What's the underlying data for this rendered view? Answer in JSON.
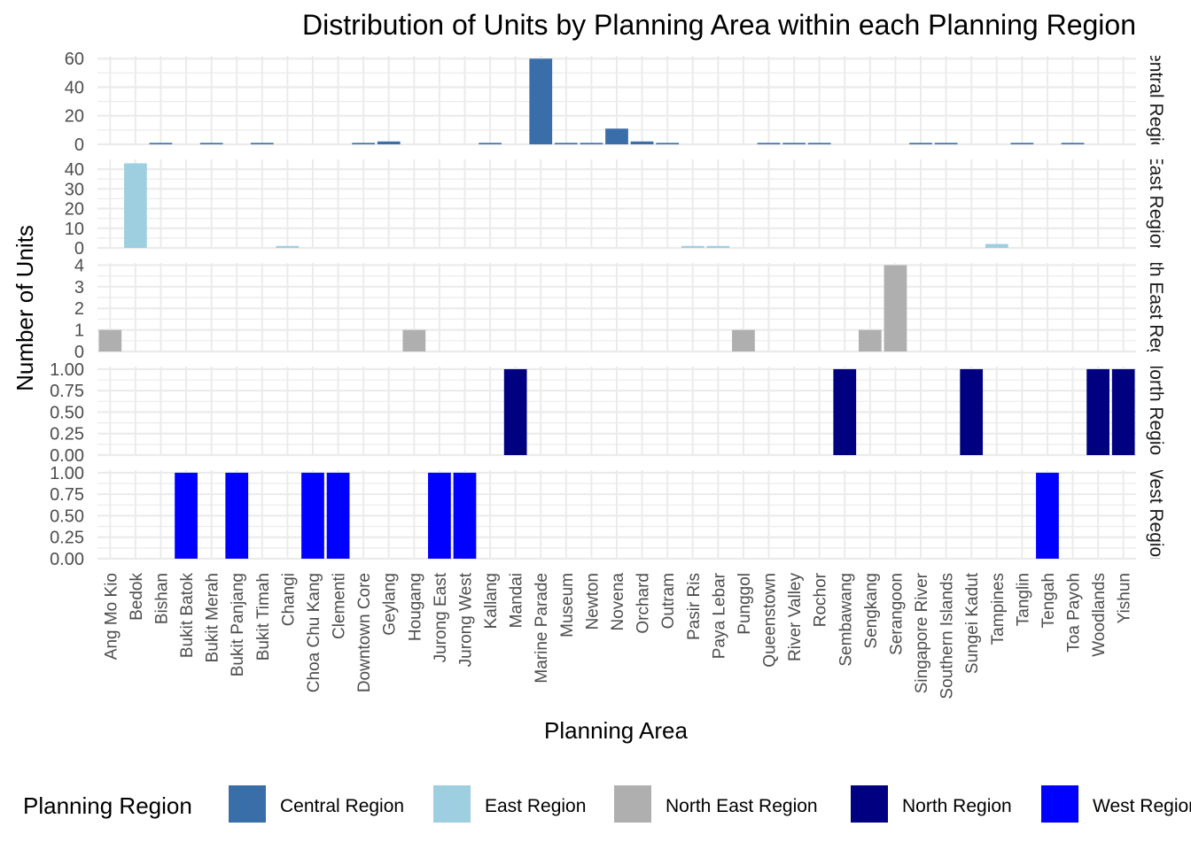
{
  "chart_data": {
    "type": "bar",
    "title": "Distribution of Units by Planning Area within each Planning Region",
    "xlabel": "Planning Area",
    "ylabel": "Number of Units",
    "grid": true,
    "legend_position": "bottom",
    "legend_title": "Planning Region",
    "categories": [
      "Ang Mo Kio",
      "Bedok",
      "Bishan",
      "Bukit Batok",
      "Bukit Merah",
      "Bukit Panjang",
      "Bukit Timah",
      "Changi",
      "Choa Chu Kang",
      "Clementi",
      "Downtown Core",
      "Geylang",
      "Hougang",
      "Jurong East",
      "Jurong West",
      "Kallang",
      "Mandai",
      "Marine Parade",
      "Museum",
      "Newton",
      "Novena",
      "Orchard",
      "Outram",
      "Pasir Ris",
      "Paya Lebar",
      "Punggol",
      "Queenstown",
      "River Valley",
      "Rochor",
      "Sembawang",
      "Sengkang",
      "Serangoon",
      "Singapore River",
      "Southern Islands",
      "Sungei Kadut",
      "Tampines",
      "Tanglin",
      "Tengah",
      "Toa Payoh",
      "Woodlands",
      "Yishun"
    ],
    "series": [
      {
        "name": "Central Region",
        "strip_label": "Central Region",
        "color": "#3A6EA8",
        "ylim": [
          0,
          62
        ],
        "yticks": [
          0,
          20,
          40,
          60
        ],
        "tick_labels": [
          "0",
          "20",
          "40",
          "60"
        ],
        "values": {
          "Bishan": 1,
          "Bukit Merah": 1,
          "Bukit Timah": 1,
          "Downtown Core": 1,
          "Geylang": 2,
          "Kallang": 1,
          "Marine Parade": 60,
          "Museum": 1,
          "Newton": 1,
          "Novena": 11,
          "Orchard": 2,
          "Outram": 1,
          "Queenstown": 1,
          "River Valley": 1,
          "Rochor": 1,
          "Singapore River": 1,
          "Southern Islands": 1,
          "Tanglin": 1,
          "Toa Payoh": 1
        }
      },
      {
        "name": "East Region",
        "strip_label": "East Region",
        "color": "#9ECFE1",
        "ylim": [
          0,
          45
        ],
        "yticks": [
          0,
          10,
          20,
          30,
          40
        ],
        "tick_labels": [
          "0",
          "10",
          "20",
          "30",
          "40"
        ],
        "values": {
          "Bedok": 43,
          "Changi": 1,
          "Pasir Ris": 1,
          "Paya Lebar": 1,
          "Tampines": 2
        }
      },
      {
        "name": "North East Region",
        "strip_label": "North East Region",
        "color": "#AFAFAF",
        "ylim": [
          0,
          4.1
        ],
        "yticks": [
          0,
          1,
          2,
          3,
          4
        ],
        "tick_labels": [
          "0",
          "1",
          "2",
          "3",
          "4"
        ],
        "values": {
          "Ang Mo Kio": 1,
          "Hougang": 1,
          "Punggol": 1,
          "Sengkang": 1,
          "Serangoon": 4
        }
      },
      {
        "name": "North Region",
        "strip_label": "North Region",
        "color": "#000080",
        "ylim": [
          0,
          1.03
        ],
        "yticks": [
          0,
          0.25,
          0.5,
          0.75,
          1
        ],
        "tick_labels": [
          "0.00",
          "0.25",
          "0.50",
          "0.75",
          "1.00"
        ],
        "values": {
          "Mandai": 1,
          "Sembawang": 1,
          "Sungei Kadut": 1,
          "Woodlands": 1,
          "Yishun": 1
        }
      },
      {
        "name": "West Region",
        "strip_label": "West Region",
        "color": "#0000FF",
        "ylim": [
          0,
          1.03
        ],
        "yticks": [
          0,
          0.25,
          0.5,
          0.75,
          1
        ],
        "tick_labels": [
          "0.00",
          "0.25",
          "0.50",
          "0.75",
          "1.00"
        ],
        "values": {
          "Bukit Batok": 1,
          "Bukit Panjang": 1,
          "Choa Chu Kang": 1,
          "Clementi": 1,
          "Jurong East": 1,
          "Jurong West": 1,
          "Tengah": 1
        }
      }
    ]
  }
}
